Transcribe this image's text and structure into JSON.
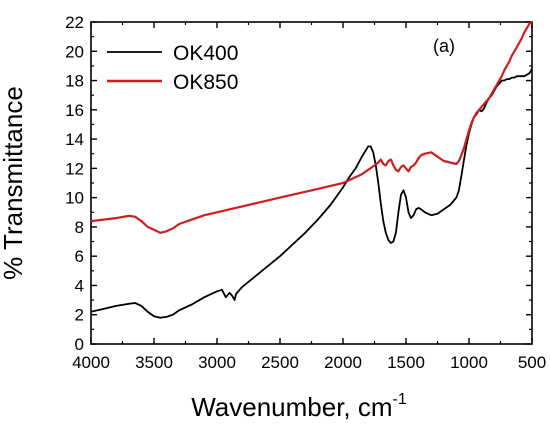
{
  "chart_data": {
    "type": "line",
    "title": "",
    "annotation": "(a)",
    "xlabel": "Wavenumber, cm",
    "xlabel_superscript": "-1",
    "ylabel": "% Transmittance",
    "xlim": [
      4000,
      500
    ],
    "ylim": [
      0,
      22
    ],
    "x_reversed": true,
    "x_ticks": [
      4000,
      3500,
      3000,
      2500,
      2000,
      1500,
      1000,
      500
    ],
    "x_tick_labels": [
      "4000",
      "3500",
      "3000",
      "2500",
      "2000",
      "1500",
      "1000",
      "500"
    ],
    "y_ticks": [
      0,
      2,
      4,
      6,
      8,
      10,
      12,
      14,
      16,
      18,
      20,
      22
    ],
    "y_tick_labels": [
      "0",
      "2",
      "4",
      "6",
      "8",
      "10",
      "12",
      "14",
      "16",
      "18",
      "20",
      "22"
    ],
    "grid": false,
    "legend_position": "top-left",
    "series": [
      {
        "name": "OK400",
        "color": "#000000",
        "x": [
          4000,
          3900,
          3800,
          3700,
          3650,
          3600,
          3550,
          3500,
          3450,
          3400,
          3350,
          3300,
          3200,
          3100,
          3000,
          2960,
          2930,
          2900,
          2880,
          2860,
          2850,
          2800,
          2700,
          2600,
          2500,
          2400,
          2300,
          2200,
          2100,
          2000,
          1950,
          1900,
          1850,
          1800,
          1780,
          1760,
          1740,
          1720,
          1700,
          1680,
          1660,
          1640,
          1620,
          1600,
          1580,
          1560,
          1540,
          1520,
          1500,
          1480,
          1460,
          1440,
          1420,
          1400,
          1380,
          1350,
          1300,
          1250,
          1200,
          1150,
          1100,
          1080,
          1060,
          1040,
          1020,
          1000,
          980,
          960,
          940,
          920,
          900,
          880,
          860,
          840,
          820,
          800,
          780,
          760,
          740,
          720,
          700,
          680,
          660,
          640,
          620,
          600,
          580,
          560,
          540,
          520,
          500
        ],
        "y": [
          2.2,
          2.4,
          2.6,
          2.75,
          2.8,
          2.6,
          2.2,
          1.9,
          1.8,
          1.85,
          2.0,
          2.3,
          2.7,
          3.2,
          3.6,
          3.7,
          3.2,
          3.5,
          3.3,
          3.0,
          3.4,
          3.9,
          4.6,
          5.3,
          6.0,
          6.8,
          7.6,
          8.5,
          9.5,
          10.7,
          11.4,
          12.0,
          12.8,
          13.5,
          13.5,
          13.1,
          12.2,
          11.0,
          9.6,
          8.4,
          7.6,
          7.1,
          6.9,
          7.0,
          7.6,
          9.0,
          10.2,
          10.5,
          10.0,
          9.0,
          8.6,
          8.8,
          9.2,
          9.3,
          9.2,
          9.0,
          8.8,
          8.9,
          9.2,
          9.5,
          10.0,
          10.5,
          11.5,
          12.6,
          13.6,
          14.4,
          15.0,
          15.5,
          15.8,
          16.0,
          15.9,
          16.1,
          16.5,
          16.8,
          17.0,
          17.3,
          17.6,
          17.8,
          18.0,
          18.0,
          18.1,
          18.1,
          18.2,
          18.2,
          18.3,
          18.3,
          18.3,
          18.3,
          18.4,
          18.5,
          18.8
        ]
      },
      {
        "name": "OK850",
        "color": "#cc1f1f",
        "x": [
          4000,
          3900,
          3800,
          3700,
          3650,
          3600,
          3550,
          3500,
          3450,
          3400,
          3350,
          3300,
          3200,
          3100,
          3000,
          2900,
          2800,
          2700,
          2600,
          2500,
          2400,
          2300,
          2200,
          2100,
          2000,
          1950,
          1900,
          1850,
          1800,
          1750,
          1720,
          1700,
          1680,
          1660,
          1640,
          1620,
          1600,
          1580,
          1560,
          1540,
          1520,
          1500,
          1480,
          1460,
          1440,
          1420,
          1400,
          1380,
          1350,
          1300,
          1250,
          1200,
          1150,
          1100,
          1080,
          1060,
          1040,
          1020,
          1000,
          980,
          960,
          940,
          920,
          900,
          880,
          860,
          840,
          820,
          800,
          780,
          760,
          740,
          720,
          700,
          680,
          660,
          640,
          620,
          600,
          580,
          560,
          540,
          520,
          500
        ],
        "y": [
          8.4,
          8.5,
          8.6,
          8.75,
          8.7,
          8.4,
          8.0,
          7.8,
          7.6,
          7.7,
          7.9,
          8.2,
          8.5,
          8.8,
          9.0,
          9.2,
          9.4,
          9.6,
          9.8,
          10.0,
          10.2,
          10.4,
          10.6,
          10.8,
          11.0,
          11.2,
          11.4,
          11.6,
          11.9,
          12.2,
          12.4,
          12.6,
          12.3,
          12.2,
          12.5,
          12.6,
          12.2,
          11.9,
          11.8,
          12.1,
          12.2,
          12.0,
          11.8,
          12.1,
          12.2,
          12.4,
          12.7,
          12.9,
          13.0,
          13.1,
          12.8,
          12.5,
          12.4,
          12.3,
          12.5,
          12.9,
          13.4,
          14.0,
          14.6,
          15.1,
          15.5,
          15.7,
          16.0,
          16.2,
          16.4,
          16.6,
          16.8,
          17.1,
          17.4,
          17.7,
          18.0,
          18.3,
          18.7,
          19.0,
          19.3,
          19.7,
          20.0,
          20.3,
          20.6,
          20.9,
          21.3,
          21.6,
          21.9,
          22.0
        ]
      }
    ]
  }
}
